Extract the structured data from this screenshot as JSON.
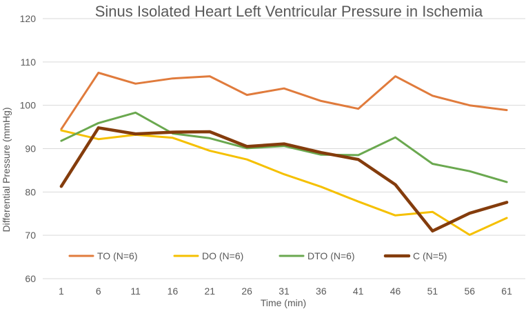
{
  "chart_data": {
    "type": "line",
    "title": "Sinus Isolated Heart Left Ventricular Pressure in Ischemia",
    "xlabel": "Time (min)",
    "ylabel": "Differential Pressure (mmHg)",
    "x": [
      "1",
      "6",
      "11",
      "16",
      "21",
      "26",
      "31",
      "36",
      "41",
      "46",
      "51",
      "56",
      "61"
    ],
    "ylim": [
      60,
      120
    ],
    "yticks": [
      "60",
      "70",
      "80",
      "90",
      "100",
      "110",
      "120"
    ],
    "grid": "horizontal",
    "legend_position": "bottom-left",
    "series": [
      {
        "name": "TO (N=6)",
        "color": "#e07b3c",
        "width": 3,
        "values": [
          94.5,
          107.5,
          105,
          106.2,
          106.7,
          102.4,
          103.9,
          101,
          99.2,
          106.7,
          102.2,
          100,
          98.9
        ]
      },
      {
        "name": "DO (N=6)",
        "color": "#f5c000",
        "width": 3,
        "values": [
          94.2,
          92.2,
          93.2,
          92.5,
          89.5,
          87.5,
          84.1,
          81.2,
          77.8,
          74.6,
          75.4,
          70.1,
          74
        ]
      },
      {
        "name": "DTO (N=6)",
        "color": "#6aa84f",
        "width": 3,
        "values": [
          91.8,
          95.9,
          98.3,
          93.5,
          92.4,
          90.1,
          90.6,
          88.6,
          88.5,
          92.6,
          86.5,
          84.8,
          82.3
        ]
      },
      {
        "name": "C (N=5)",
        "color": "#843c0c",
        "width": 4.5,
        "values": [
          81.3,
          94.8,
          93.4,
          93.8,
          93.9,
          90.5,
          91.1,
          89.1,
          87.5,
          81.7,
          71,
          75.1,
          77.6
        ]
      }
    ]
  }
}
